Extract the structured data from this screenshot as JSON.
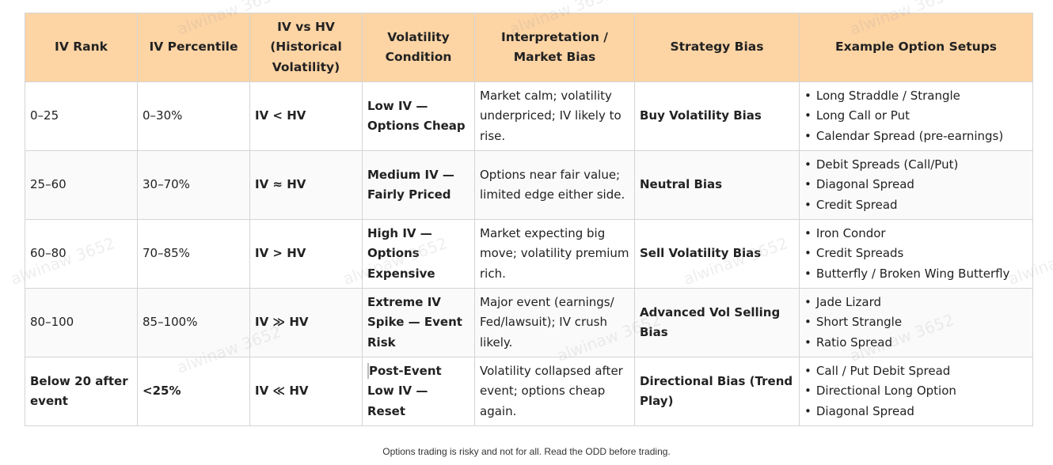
{
  "table": {
    "headers": [
      "IV Rank",
      "IV Percentile",
      "IV vs HV (Historical Volatility)",
      "Volatility Condition",
      "Interpretation / Market Bias",
      "Strategy Bias",
      "Example Option Setups"
    ],
    "rows": [
      [
        "0–25",
        "0–30%",
        "IV < HV",
        "Low IV — Options Cheap",
        "Market calm; volatility underpriced; IV likely to rise.",
        "Buy Volatility Bias",
        [
          "Long Straddle / Strangle",
          "Long Call or Put",
          "Calendar Spread (pre-earnings)"
        ]
      ],
      [
        "25–60",
        "30–70%",
        "IV ≈ HV",
        "Medium IV — Fairly Priced",
        "Options near fair value; limited edge either side.",
        "Neutral Bias",
        [
          "Debit Spreads (Call/Put)",
          "Diagonal Spread",
          "Credit Spread"
        ]
      ],
      [
        "60–80",
        "70–85%",
        "IV > HV",
        "High IV — Options Expensive",
        "Market expecting big move; volatility premium rich.",
        "Sell Volatility Bias",
        [
          "Iron Condor",
          "Credit Spreads",
          "Butterfly / Broken Wing Butterfly"
        ]
      ],
      [
        "80–100",
        "85–100%",
        "IV ≫ HV",
        "Extreme IV Spike — Event Risk",
        "Major event (earnings/ Fed/lawsuit); IV crush likely.",
        "Advanced Vol Selling Bias",
        [
          "Jade Lizard",
          "Short Strangle",
          "Ratio Spread"
        ]
      ],
      [
        "Below 20 after event",
        "<25%",
        "IV ≪ HV",
        "Post-Event Low IV — Reset",
        "Volatility collapsed after event; options cheap again.",
        "Directional Bias (Trend Play)",
        [
          "Call / Put Debit Spread",
          "Directional Long Option",
          "Diagonal Spread"
        ]
      ]
    ]
  },
  "watermark": "alwinaw 3652",
  "footer": "Options trading is risky and not for all. Read the ODD before trading."
}
